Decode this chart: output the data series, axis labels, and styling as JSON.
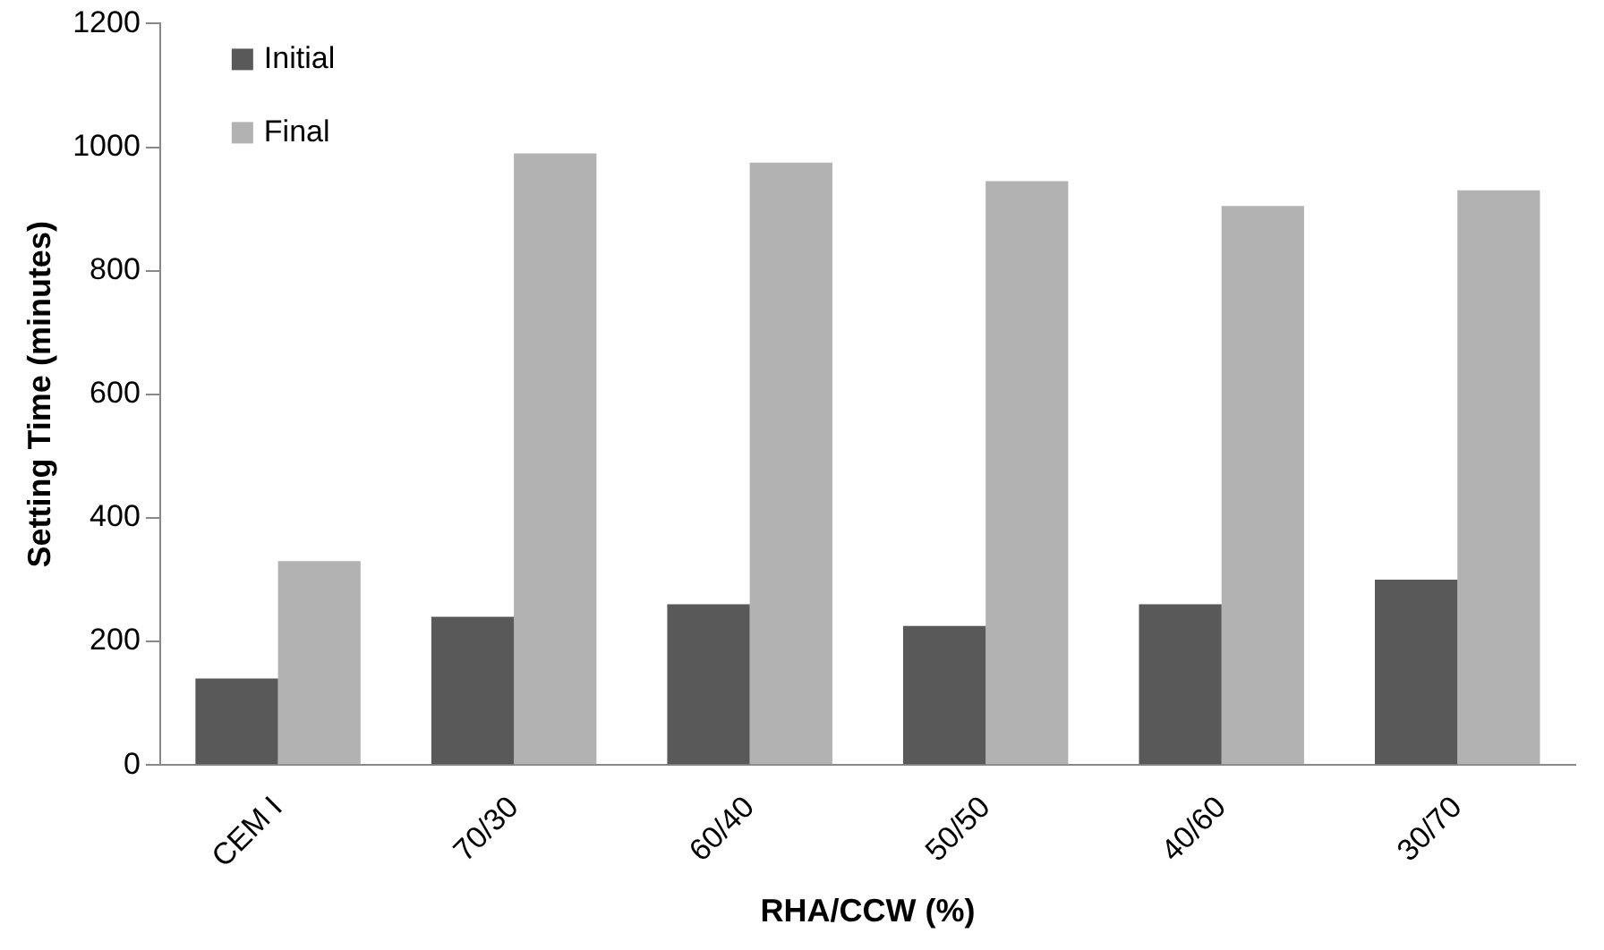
{
  "chart_data": {
    "type": "bar",
    "xlabel": "RHA/CCW (%)",
    "ylabel": "Setting Time (minutes)",
    "categories": [
      "CEM I",
      "70/30",
      "60/40",
      "50/50",
      "40/60",
      "30/70"
    ],
    "series": [
      {
        "name": "Initial",
        "color": "#595959",
        "values": [
          140,
          240,
          260,
          225,
          260,
          300
        ]
      },
      {
        "name": "Final",
        "color": "#b2b2b2",
        "values": [
          330,
          990,
          975,
          945,
          905,
          930
        ]
      }
    ],
    "ylim": [
      0,
      1200
    ],
    "yticks": [
      0,
      200,
      400,
      600,
      800,
      1000,
      1200
    ],
    "grid": false,
    "legend": "top left"
  }
}
